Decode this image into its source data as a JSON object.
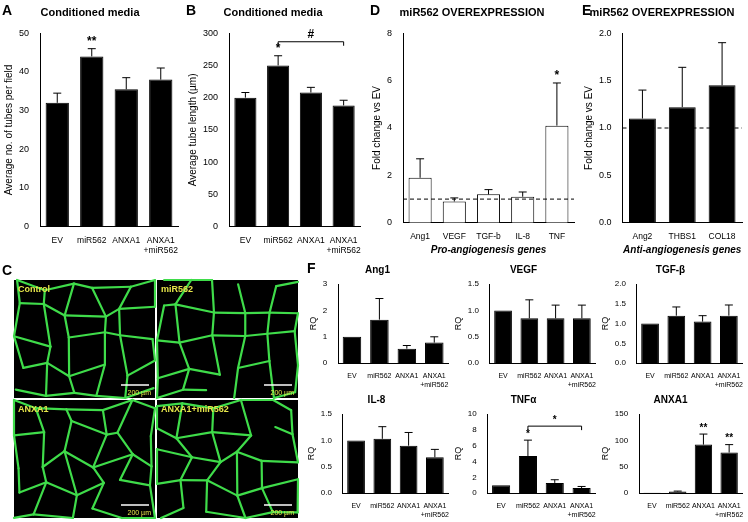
{
  "chart_data": [
    {
      "panel": "A",
      "type": "bar",
      "title": "Conditioned media",
      "y_label": "Average no. of tubes per field",
      "categories": [
        "EV",
        "miR562",
        "ANXA1",
        "ANXA1+miR562"
      ],
      "values": [
        32,
        44,
        35.5,
        38
      ],
      "errors": [
        2.5,
        2,
        3,
        3
      ],
      "color": "#000000",
      "ylim": [
        0,
        50
      ],
      "yticks": [
        0,
        10,
        20,
        30,
        40,
        50
      ],
      "grid": false,
      "annotations": [
        {
          "category": "miR562",
          "text": "**"
        }
      ]
    },
    {
      "panel": "B",
      "type": "bar",
      "title": "Conditioned media",
      "y_label": "Average tube length (µm)",
      "categories": [
        "EV",
        "miR562",
        "ANXA1",
        "ANXA1+miR562"
      ],
      "values": [
        200,
        250,
        208,
        188
      ],
      "errors": [
        8,
        15,
        8,
        8
      ],
      "color": "#000000",
      "ylim": [
        0,
        300
      ],
      "yticks": [
        0,
        50,
        100,
        150,
        200,
        250,
        300
      ],
      "grid": false,
      "annotations": [
        {
          "category": "miR562",
          "text": "*"
        }
      ],
      "brackets": [
        {
          "from": "miR562",
          "to": "ANXA1+miR562",
          "text": "#"
        }
      ]
    },
    {
      "panel": "D",
      "type": "bar",
      "title": "miR562 OVEREXPRESSION",
      "x_label": "Pro-angiogenesis genes",
      "y_label": "Fold change vs EV",
      "categories": [
        "Ang1",
        "VEGF",
        "TGF-b",
        "IL-8",
        "TNF"
      ],
      "values": [
        1.9,
        0.9,
        1.2,
        1.1,
        4.1
      ],
      "errors": [
        0.8,
        0.15,
        0.2,
        0.2,
        1.8
      ],
      "color": "#ffffff",
      "ylim": [
        0,
        8
      ],
      "yticks": [
        0,
        2,
        4,
        6,
        8
      ],
      "grid": false,
      "reference_line": 1,
      "annotations": [
        {
          "category": "TNF",
          "text": "*"
        }
      ]
    },
    {
      "panel": "E",
      "type": "bar",
      "title": "miR562 OVEREXPRESSION",
      "x_label": "Anti-angiogenesis genes",
      "y_label": "Fold change vs EV",
      "categories": [
        "Ang2",
        "THBS1",
        "COL18"
      ],
      "values": [
        1.1,
        1.22,
        1.45
      ],
      "errors": [
        0.3,
        0.42,
        0.45
      ],
      "color": "#000000",
      "ylim": [
        0,
        2
      ],
      "yticks": [
        {
          "value": 0,
          "label": "0.0"
        },
        {
          "value": 0.5,
          "label": "0.5"
        },
        {
          "value": 1,
          "label": "1.0"
        },
        {
          "value": 1.5,
          "label": "1.5"
        },
        {
          "value": 2,
          "label": "2.0"
        }
      ],
      "grid": false,
      "reference_line": 1
    },
    {
      "panel": "F",
      "type": "bar",
      "title": "Ang1",
      "y_label": "RQ",
      "categories": [
        "EV",
        "miR562",
        "ANXA1",
        "ANXA1+miR562"
      ],
      "values": [
        1,
        1.65,
        0.55,
        0.78
      ],
      "errors": [
        0,
        0.8,
        0.12,
        0.22
      ],
      "color": "#000000",
      "ylim": [
        0,
        3
      ],
      "yticks": [
        0,
        1,
        2,
        3
      ],
      "grid": false
    },
    {
      "type": "bar",
      "title": "VEGF",
      "y_label": "RQ",
      "categories": [
        "EV",
        "miR562",
        "ANXA1",
        "ANXA1+miR562"
      ],
      "values": [
        1,
        0.85,
        0.85,
        0.85
      ],
      "errors": [
        0,
        0.35,
        0.25,
        0.25
      ],
      "color": "#000000",
      "ylim": [
        0,
        1.5
      ],
      "yticks": [
        {
          "value": 0,
          "label": "0.0"
        },
        {
          "value": 0.5,
          "label": "0.5"
        },
        {
          "value": 1,
          "label": "1.0"
        },
        {
          "value": 1.5,
          "label": "1.5"
        }
      ],
      "grid": false
    },
    {
      "type": "bar",
      "title": "TGF-β",
      "y_label": "RQ",
      "categories": [
        "EV",
        "miR562",
        "ANXA1",
        "ANXA1+miR562"
      ],
      "values": [
        1,
        1.2,
        1.05,
        1.2
      ],
      "errors": [
        0,
        0.22,
        0.15,
        0.27
      ],
      "color": "#000000",
      "ylim": [
        0,
        2
      ],
      "yticks": [
        {
          "value": 0,
          "label": "0.0"
        },
        {
          "value": 0.5,
          "label": "0.5"
        },
        {
          "value": 1,
          "label": "1.0"
        },
        {
          "value": 1.5,
          "label": "1.5"
        },
        {
          "value": 2,
          "label": "2.0"
        }
      ],
      "grid": false
    },
    {
      "type": "bar",
      "title": "IL-8",
      "y_label": "RQ",
      "categories": [
        "EV",
        "miR562",
        "ANXA1",
        "ANXA1+miR562"
      ],
      "values": [
        1,
        1.03,
        0.9,
        0.68
      ],
      "errors": [
        0,
        0.23,
        0.25,
        0.15
      ],
      "color": "#000000",
      "ylim": [
        0,
        1.5
      ],
      "yticks": [
        {
          "value": 0,
          "label": "0.0"
        },
        {
          "value": 0.5,
          "label": "0.5"
        },
        {
          "value": 1,
          "label": "1.0"
        },
        {
          "value": 1.5,
          "label": "1.5"
        }
      ],
      "grid": false
    },
    {
      "type": "bar",
      "title": "TNFα",
      "y_label": "RQ",
      "categories": [
        "EV",
        "miR562",
        "ANXA1",
        "ANXA1+miR562"
      ],
      "values": [
        1,
        4.7,
        1.3,
        0.65
      ],
      "errors": [
        0,
        2,
        0.4,
        0.2
      ],
      "color": "#000000",
      "ylim": [
        0,
        10
      ],
      "yticks": [
        0,
        2,
        4,
        6,
        8,
        10
      ],
      "grid": false,
      "annotations": [
        {
          "category": "miR562",
          "text": "*"
        }
      ],
      "brackets": [
        {
          "from": "miR562",
          "to": "ANXA1+miR562",
          "text": "*"
        }
      ]
    },
    {
      "type": "bar",
      "title": "ANXA1",
      "y_label": "RQ",
      "categories": [
        "EV",
        "miR562",
        "ANXA1",
        "ANXA1+miR562"
      ],
      "values": [
        1,
        3,
        92,
        77
      ],
      "errors": [
        0,
        1,
        20,
        15
      ],
      "color": "#000000",
      "ylim": [
        0,
        150
      ],
      "yticks": [
        0,
        50,
        100,
        150
      ],
      "grid": false,
      "annotations": [
        {
          "category": "ANXA1",
          "text": "**"
        },
        {
          "category": "ANXA1+miR562",
          "text": "**"
        }
      ]
    }
  ],
  "image_panel": {
    "panel": "C",
    "labels": [
      "Control",
      "miR562",
      "ANXA1",
      "ANXA1+miR562"
    ],
    "scale_bar": "200 µm"
  }
}
